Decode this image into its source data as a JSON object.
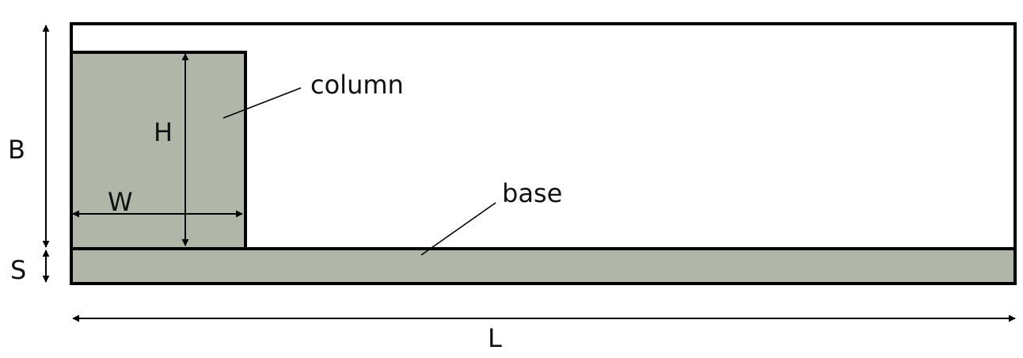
{
  "labels": {
    "column": "column",
    "base": "base",
    "height": "H",
    "width": "W",
    "domain_height": "B",
    "base_thickness": "S",
    "domain_length": "L"
  },
  "colors": {
    "solid_fill": "#b1b7a8",
    "outline": "#000000",
    "background": "#ffffff"
  }
}
